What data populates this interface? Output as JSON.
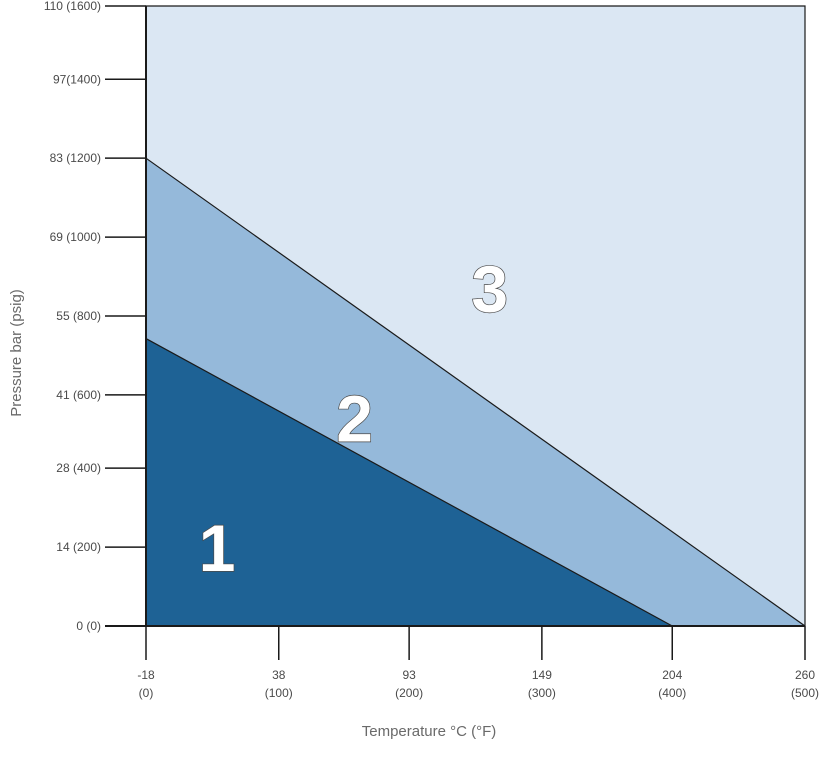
{
  "colors": {
    "region_1": "#1e6295",
    "region_2": "#95b9da",
    "region_3": "#dbe7f3",
    "lines": "#1a1a1a"
  },
  "chart_data": {
    "type": "area",
    "xlabel": "Temperature °C (°F)",
    "ylabel": "Pressure bar (psig)",
    "xlim": [
      -18,
      260
    ],
    "ylim": [
      0,
      110
    ],
    "x_ticks": [
      {
        "value": -18,
        "label": "-18",
        "sublabel": "(0)"
      },
      {
        "value": 38,
        "label": "38",
        "sublabel": "(100)"
      },
      {
        "value": 93,
        "label": "93",
        "sublabel": "(200)"
      },
      {
        "value": 149,
        "label": "149",
        "sublabel": "(300)"
      },
      {
        "value": 204,
        "label": "204",
        "sublabel": "(400)"
      },
      {
        "value": 260,
        "label": "260",
        "sublabel": "(500)"
      }
    ],
    "y_ticks": [
      {
        "value": 0,
        "label": "0 (0)"
      },
      {
        "value": 14,
        "label": "14 (200)"
      },
      {
        "value": 28,
        "label": "28 (400)"
      },
      {
        "value": 41,
        "label": "41 (600)"
      },
      {
        "value": 55,
        "label": "55 (800)"
      },
      {
        "value": 69,
        "label": "69 (1000)"
      },
      {
        "value": 83,
        "label": "83 (1200)"
      },
      {
        "value": 97,
        "label": "97(1400)"
      },
      {
        "value": 110,
        "label": "110 (1600)"
      }
    ],
    "regions": [
      {
        "label": "1",
        "boundary": [
          {
            "x": -18,
            "y": 51
          },
          {
            "x": 204,
            "y": 0
          }
        ],
        "label_at": {
          "x": 12,
          "y": 14
        }
      },
      {
        "label": "2",
        "boundary": [
          {
            "x": -18,
            "y": 83
          },
          {
            "x": 260,
            "y": 0
          }
        ],
        "label_at": {
          "x": 70,
          "y": 37
        }
      },
      {
        "label": "3",
        "boundary": [
          {
            "x": -18,
            "y": 110
          },
          {
            "x": 260,
            "y": 110
          }
        ],
        "label_at": {
          "x": 127,
          "y": 60
        }
      }
    ]
  }
}
